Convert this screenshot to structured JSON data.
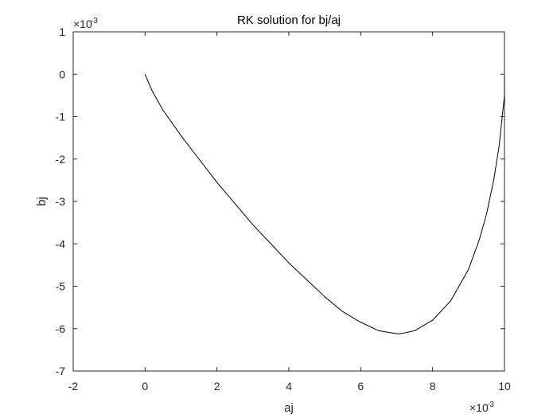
{
  "chart_data": {
    "type": "line",
    "title": "RK solution for bj/aj",
    "xlabel": "aj",
    "ylabel": "bj",
    "x_multiplier": "×10",
    "x_multiplier_exp": "-3",
    "y_multiplier": "×10",
    "y_multiplier_exp": "-3",
    "xlim": [
      -2,
      10
    ],
    "ylim": [
      -7,
      1
    ],
    "xticks": [
      -2,
      0,
      2,
      4,
      6,
      8,
      10
    ],
    "yticks": [
      -7,
      -6,
      -5,
      -4,
      -3,
      -2,
      -1,
      0,
      1
    ],
    "x_tick_labels": [
      "-2",
      "0",
      "2",
      "4",
      "6",
      "8",
      "10"
    ],
    "y_tick_labels": [
      "-7",
      "-6",
      "-5",
      "-4",
      "-3",
      "-2",
      "-1",
      "0",
      "1"
    ],
    "grid": false,
    "colors": {
      "line": "#000000",
      "axes": "#262626",
      "background": "#ffffff"
    },
    "series": [
      {
        "x": [
          0,
          0.1,
          0.2,
          0.5,
          1.0,
          1.5,
          2.0,
          2.5,
          3.0,
          3.5,
          4.0,
          4.5,
          5.0,
          5.5,
          6.0,
          6.5,
          7.0,
          7.1,
          7.5,
          8.0,
          8.5,
          9.0,
          9.3,
          9.5,
          9.7,
          9.85,
          9.95,
          10.0,
          10.0,
          10.0
        ],
        "y": [
          0,
          -0.2,
          -0.4,
          -0.85,
          -1.45,
          -2.0,
          -2.55,
          -3.05,
          -3.55,
          -4.0,
          -4.45,
          -4.85,
          -5.25,
          -5.6,
          -5.85,
          -6.05,
          -6.12,
          -6.12,
          -6.05,
          -5.8,
          -5.35,
          -4.6,
          -3.9,
          -3.3,
          -2.5,
          -1.7,
          -0.9,
          -0.5,
          -0.2,
          -0.05
        ]
      }
    ]
  }
}
